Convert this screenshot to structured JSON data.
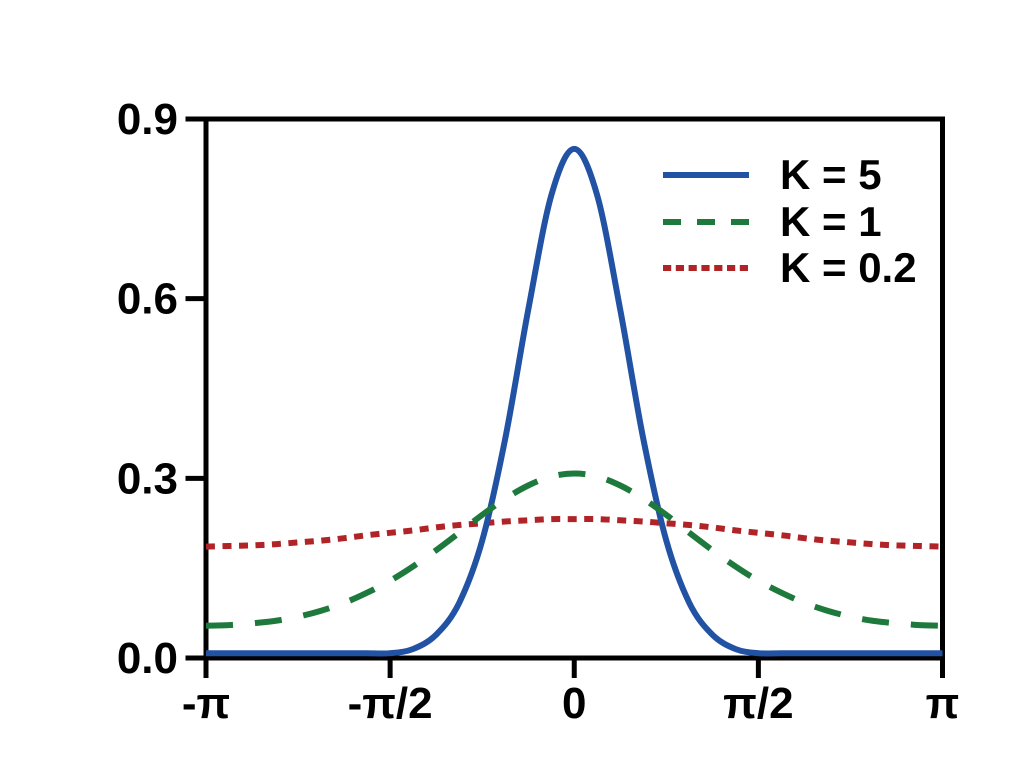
{
  "figure": {
    "background": "#ffffff",
    "axis_color": "#000000"
  },
  "chart_data": {
    "type": "line",
    "title": "",
    "xlabel": "",
    "ylabel": "",
    "xlim": [
      -3.1416,
      3.1416
    ],
    "ylim": [
      0,
      0.9
    ],
    "grid": false,
    "legend_position": "upper-right",
    "x_units": "radians",
    "x_ticks": [
      {
        "value": -3.1416,
        "label": "-π"
      },
      {
        "value": -1.5708,
        "label": "-π/2"
      },
      {
        "value": 0,
        "label": "0"
      },
      {
        "value": 1.5708,
        "label": "π/2"
      },
      {
        "value": 3.1416,
        "label": "π"
      }
    ],
    "y_ticks": [
      {
        "value": 0,
        "label": "0.0"
      },
      {
        "value": 0.3,
        "label": "0.3"
      },
      {
        "value": 0.6,
        "label": "0.6"
      },
      {
        "value": 0.9,
        "label": "0.9"
      }
    ],
    "x": [
      -3.1416,
      -2.9452,
      -2.7489,
      -2.5525,
      -2.3562,
      -2.1598,
      -1.9635,
      -1.7671,
      -1.5708,
      -1.3744,
      -1.1781,
      -0.9817,
      -0.7854,
      -0.589,
      -0.3927,
      -0.1963,
      0,
      0.1963,
      0.3927,
      0.589,
      0.7854,
      0.9817,
      1.1781,
      1.3744,
      1.5708,
      1.7671,
      1.9635,
      2.1598,
      2.3562,
      2.5525,
      2.7489,
      2.9452,
      3.1416
    ],
    "series": [
      {
        "name": "K = 5",
        "color": "#2152a3",
        "style": "solid",
        "zorder": 2,
        "peak": 0.85,
        "values": [
          0.008,
          0.008,
          0.008,
          0.008,
          0.008,
          0.008,
          0.008,
          0.008,
          0.008,
          0.015,
          0.039,
          0.092,
          0.196,
          0.366,
          0.581,
          0.772,
          0.85,
          0.772,
          0.581,
          0.366,
          0.196,
          0.092,
          0.039,
          0.015,
          0.008,
          0.008,
          0.008,
          0.008,
          0.008,
          0.008,
          0.008,
          0.008,
          0.008
        ]
      },
      {
        "name": "K = 1",
        "color": "#1e7a3c",
        "style": "dashed",
        "zorder": 3,
        "peak": 0.308,
        "values": [
          0.054,
          0.055,
          0.058,
          0.062,
          0.069,
          0.079,
          0.092,
          0.109,
          0.129,
          0.153,
          0.18,
          0.209,
          0.239,
          0.266,
          0.288,
          0.303,
          0.308,
          0.303,
          0.288,
          0.266,
          0.239,
          0.209,
          0.18,
          0.153,
          0.129,
          0.109,
          0.092,
          0.079,
          0.069,
          0.062,
          0.058,
          0.055,
          0.054
        ]
      },
      {
        "name": "K = 0.2",
        "color": "#b02428",
        "style": "dotted",
        "zorder": 1,
        "peak": 0.232,
        "values": [
          0.186,
          0.187,
          0.188,
          0.19,
          0.193,
          0.196,
          0.2,
          0.205,
          0.209,
          0.213,
          0.218,
          0.222,
          0.225,
          0.228,
          0.23,
          0.232,
          0.232,
          0.232,
          0.23,
          0.228,
          0.225,
          0.222,
          0.218,
          0.213,
          0.209,
          0.205,
          0.2,
          0.196,
          0.193,
          0.19,
          0.188,
          0.187,
          0.186
        ]
      }
    ]
  }
}
